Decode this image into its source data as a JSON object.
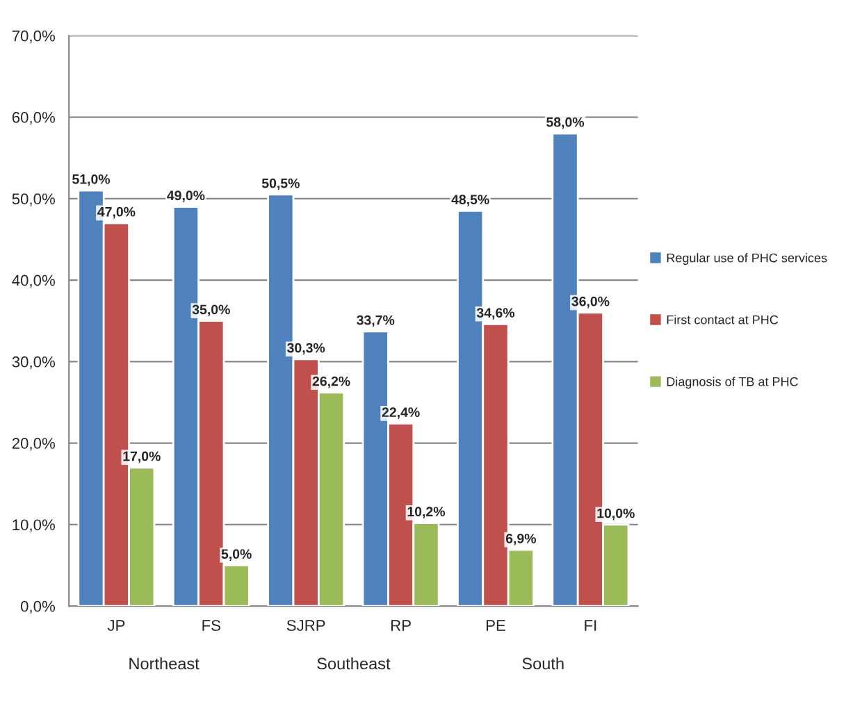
{
  "chart_data": {
    "type": "bar",
    "categories": [
      "JP",
      "FS",
      "SJRP",
      "RP",
      "PE",
      "FI"
    ],
    "series": [
      {
        "name": "Regular use of PHC services",
        "color": "#4f81bd",
        "values": [
          51.0,
          49.0,
          50.5,
          33.7,
          48.5,
          58.0
        ],
        "value_labels": [
          "51,0%",
          "49,0%",
          "50,5%",
          "33,7%",
          "48,5%",
          "58,0%"
        ]
      },
      {
        "name": "First contact at PHC",
        "color": "#c0504d",
        "values": [
          47.0,
          35.0,
          30.3,
          22.4,
          34.6,
          36.0
        ],
        "value_labels": [
          "47,0%",
          "35,0%",
          "30,3%",
          "22,4%",
          "34,6%",
          "36,0%"
        ]
      },
      {
        "name": "Diagnosis of TB at PHC",
        "color": "#9bbb59",
        "values": [
          17.0,
          5.0,
          26.2,
          10.2,
          6.9,
          10.0
        ],
        "value_labels": [
          "17,0%",
          "5,0%",
          "26,2%",
          "10,2%",
          "6,9%",
          "10,0%"
        ]
      }
    ],
    "annotations": [
      "Northeast",
      "Southeast",
      "South"
    ],
    "ylim": [
      0,
      70
    ],
    "yticks": [
      {
        "value": 0,
        "label": "0,0%"
      },
      {
        "value": 10,
        "label": "10,0%"
      },
      {
        "value": 20,
        "label": "20,0%"
      },
      {
        "value": 30,
        "label": "30,0%"
      },
      {
        "value": 40,
        "label": "40,0%"
      },
      {
        "value": 50,
        "label": "50,0%"
      },
      {
        "value": 60,
        "label": "60,0%"
      },
      {
        "value": 70,
        "label": "70,0%"
      }
    ],
    "grid": "y",
    "legend": "right"
  }
}
